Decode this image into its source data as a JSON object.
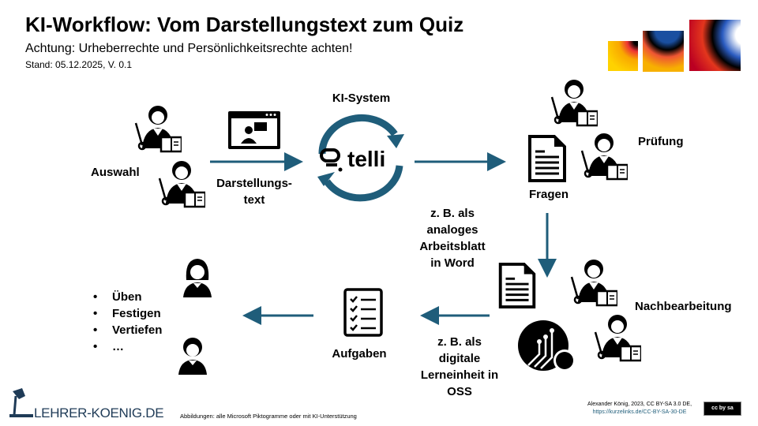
{
  "header": {
    "title": "KI-Workflow: Vom Darstellungstext zum Quiz",
    "subtitle": "Achtung: Urheberrechte und Persönlichkeitsrechte achten!",
    "stand": "Stand: 05.12.2025, V. 0.1"
  },
  "flow": {
    "auswahl": "Auswahl",
    "darstellungstext": [
      "Darstellungs-",
      "text"
    ],
    "ki_system": "KI-System",
    "telli": "telli",
    "fragen": "Fragen",
    "pruefung": "Prüfung",
    "analog": [
      "z. B. als",
      "analoges",
      "Arbeitsblatt",
      "in Word"
    ],
    "nachbearbeitung": "Nachbearbeitung",
    "digital": [
      "z. B. als",
      "digitale",
      "Lerneinheit in",
      "OSS"
    ],
    "aufgaben": "Aufgaben",
    "bullets": [
      "Üben",
      "Festigen",
      "Vertiefen",
      "…"
    ]
  },
  "footer": {
    "logo": "LEHRER-KOENIG.DE",
    "abbildungen": "Abbildungen: alle Microsoft Piktogramme oder mit KI-Unterstützung",
    "credit": "Alexander König, 2023, CC BY-SA 3.0 DE,",
    "credit_link": "https://kurzelinks.de/CC-BY-SA-30-DE",
    "license_badge": "cc by sa"
  },
  "colors": {
    "arrow": "#1f5d7a",
    "logo": "#1f3b57"
  },
  "icons": [
    "teacher-icon",
    "browser-chat-icon",
    "cycle-arrows-icon",
    "document-icon",
    "circuit-icon",
    "checklist-icon",
    "student-icon",
    "lamp-icon",
    "cc-license-icon",
    "decorative-squares"
  ]
}
